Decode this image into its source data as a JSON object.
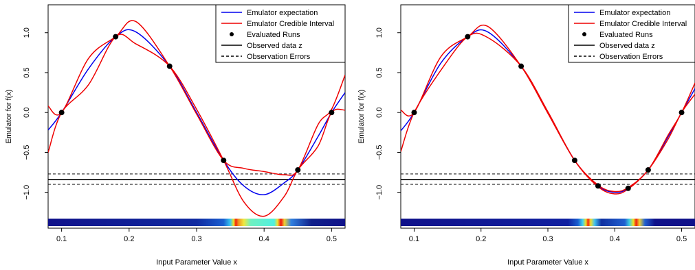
{
  "chart_data": [
    {
      "type": "line",
      "xlabel": "Input Parameter Value x",
      "ylabel": "Emulator for f(x)",
      "xlim": [
        0.08,
        0.52
      ],
      "ylim": [
        -1.45,
        1.35
      ],
      "xticks": [
        0.1,
        0.2,
        0.3,
        0.4,
        0.5
      ],
      "xtick_labels": [
        "0.1",
        "0.2",
        "0.3",
        "0.4",
        "0.5"
      ],
      "yticks": [
        -1.0,
        -0.5,
        0.0,
        0.5,
        1.0
      ],
      "ytick_labels": [
        "−1.0",
        "−0.5",
        "0.0",
        "0.5",
        "1.0"
      ],
      "legend": {
        "placement": "top-right",
        "entries": [
          {
            "label": "Emulator expectation",
            "style": "line",
            "color": "#0000ee"
          },
          {
            "label": "Emulator Credible Interval",
            "style": "line",
            "color": "#ee0000"
          },
          {
            "label": "Evaluated Runs",
            "style": "point",
            "color": "#000000"
          },
          {
            "label": "Observed data z",
            "style": "line",
            "color": "#000000"
          },
          {
            "label": "Observation Errors",
            "style": "dash",
            "color": "#000000"
          }
        ]
      },
      "observed_z": -0.84,
      "observation_error_band": [
        -0.9,
        -0.77
      ],
      "runs": {
        "x": [
          0.1,
          0.18,
          0.26,
          0.34,
          0.45,
          0.5
        ],
        "y": [
          0.0,
          0.95,
          0.58,
          -0.6,
          -0.72,
          0.0
        ]
      },
      "series": [
        {
          "name": "Emulator expectation",
          "color": "#0000ee",
          "x": [
            0.08,
            0.1,
            0.14,
            0.18,
            0.21,
            0.26,
            0.3,
            0.34,
            0.37,
            0.4,
            0.43,
            0.45,
            0.48,
            0.5,
            0.52
          ],
          "y": [
            -0.22,
            0.0,
            0.55,
            0.95,
            1.01,
            0.58,
            0.0,
            -0.6,
            -0.92,
            -1.03,
            -0.88,
            -0.72,
            -0.3,
            0.0,
            0.25
          ]
        },
        {
          "name": "Emulator Credible Interval (upper)",
          "color": "#ee0000",
          "x": [
            0.08,
            0.1,
            0.14,
            0.18,
            0.21,
            0.26,
            0.3,
            0.34,
            0.37,
            0.4,
            0.43,
            0.45,
            0.48,
            0.5,
            0.52
          ],
          "y": [
            0.08,
            0.0,
            0.68,
            0.95,
            1.14,
            0.58,
            -0.02,
            -0.6,
            -0.7,
            -0.74,
            -0.78,
            -0.72,
            -0.15,
            0.04,
            0.47
          ]
        },
        {
          "name": "Emulator Credible Interval (lower)",
          "color": "#ee0000",
          "x": [
            0.08,
            0.1,
            0.14,
            0.18,
            0.21,
            0.26,
            0.3,
            0.34,
            0.37,
            0.4,
            0.43,
            0.45,
            0.48,
            0.5,
            0.52
          ],
          "y": [
            -0.5,
            0.0,
            0.35,
            0.95,
            0.86,
            0.58,
            0.04,
            -0.6,
            -1.12,
            -1.3,
            -1.05,
            -0.72,
            -0.42,
            0.0,
            0.03
          ]
        }
      ],
      "heatmap_strip": {
        "x_range": [
          0.08,
          0.52
        ],
        "stops": [
          {
            "x": 0.08,
            "color": "#10128a"
          },
          {
            "x": 0.3,
            "color": "#102aa0"
          },
          {
            "x": 0.34,
            "color": "#1a5fd0"
          },
          {
            "x": 0.35,
            "color": "#38c8f0"
          },
          {
            "x": 0.355,
            "color": "#f0e020"
          },
          {
            "x": 0.358,
            "color": "#f02010"
          },
          {
            "x": 0.362,
            "color": "#f09020"
          },
          {
            "x": 0.37,
            "color": "#f0e840"
          },
          {
            "x": 0.38,
            "color": "#70f0c0"
          },
          {
            "x": 0.415,
            "color": "#50f0e0"
          },
          {
            "x": 0.42,
            "color": "#f0e030"
          },
          {
            "x": 0.425,
            "color": "#f01010"
          },
          {
            "x": 0.43,
            "color": "#f0d030"
          },
          {
            "x": 0.44,
            "color": "#3080e0"
          },
          {
            "x": 0.47,
            "color": "#10208a"
          },
          {
            "x": 0.52,
            "color": "#10128a"
          }
        ]
      }
    },
    {
      "type": "line",
      "xlabel": "Input Parameter Value x",
      "ylabel": "Emulator for f(x)",
      "xlim": [
        0.08,
        0.52
      ],
      "ylim": [
        -1.45,
        1.35
      ],
      "xticks": [
        0.1,
        0.2,
        0.3,
        0.4,
        0.5
      ],
      "xtick_labels": [
        "0.1",
        "0.2",
        "0.3",
        "0.4",
        "0.5"
      ],
      "yticks": [
        -1.0,
        -0.5,
        0.0,
        0.5,
        1.0
      ],
      "ytick_labels": [
        "−1.0",
        "−0.5",
        "0.0",
        "0.5",
        "1.0"
      ],
      "legend": {
        "placement": "top-right",
        "entries": [
          {
            "label": "Emulator expectation",
            "style": "line",
            "color": "#0000ee"
          },
          {
            "label": "Emulator Credible Interval",
            "style": "line",
            "color": "#ee0000"
          },
          {
            "label": "Evaluated Runs",
            "style": "point",
            "color": "#000000"
          },
          {
            "label": "Observed data z",
            "style": "line",
            "color": "#000000"
          },
          {
            "label": "Observation Errors",
            "style": "dash",
            "color": "#000000"
          }
        ]
      },
      "observed_z": -0.84,
      "observation_error_band": [
        -0.9,
        -0.77
      ],
      "runs": {
        "x": [
          0.1,
          0.18,
          0.26,
          0.34,
          0.375,
          0.42,
          0.45,
          0.5
        ],
        "y": [
          0.0,
          0.95,
          0.58,
          -0.6,
          -0.92,
          -0.95,
          -0.72,
          0.0
        ]
      },
      "series": [
        {
          "name": "Emulator expectation",
          "color": "#0000ee",
          "x": [
            0.08,
            0.1,
            0.14,
            0.18,
            0.21,
            0.26,
            0.3,
            0.34,
            0.375,
            0.4,
            0.42,
            0.45,
            0.48,
            0.5,
            0.52
          ],
          "y": [
            -0.23,
            0.0,
            0.62,
            0.95,
            1.01,
            0.58,
            0.0,
            -0.6,
            -0.92,
            -1.0,
            -0.95,
            -0.72,
            -0.3,
            0.0,
            0.3
          ]
        },
        {
          "name": "Emulator Credible Interval (upper)",
          "color": "#ee0000",
          "x": [
            0.08,
            0.1,
            0.14,
            0.18,
            0.21,
            0.26,
            0.3,
            0.34,
            0.375,
            0.4,
            0.42,
            0.45,
            0.48,
            0.5,
            0.52
          ],
          "y": [
            0.03,
            0.0,
            0.7,
            0.95,
            1.08,
            0.58,
            -0.01,
            -0.6,
            -0.91,
            -0.99,
            -0.94,
            -0.72,
            -0.28,
            0.0,
            0.37
          ]
        },
        {
          "name": "Emulator Credible Interval (lower)",
          "color": "#ee0000",
          "x": [
            0.08,
            0.1,
            0.14,
            0.18,
            0.21,
            0.26,
            0.3,
            0.34,
            0.375,
            0.4,
            0.42,
            0.45,
            0.48,
            0.5,
            0.52
          ],
          "y": [
            -0.49,
            0.0,
            0.53,
            0.95,
            0.94,
            0.58,
            0.01,
            -0.6,
            -0.93,
            -1.02,
            -0.96,
            -0.72,
            -0.33,
            0.0,
            0.23
          ]
        }
      ],
      "heatmap_strip": {
        "x_range": [
          0.08,
          0.52
        ],
        "stops": [
          {
            "x": 0.08,
            "color": "#10128a"
          },
          {
            "x": 0.33,
            "color": "#1020a0"
          },
          {
            "x": 0.345,
            "color": "#1a5fd0"
          },
          {
            "x": 0.352,
            "color": "#40d0f0"
          },
          {
            "x": 0.357,
            "color": "#f0e020"
          },
          {
            "x": 0.36,
            "color": "#f02010"
          },
          {
            "x": 0.364,
            "color": "#f0e030"
          },
          {
            "x": 0.37,
            "color": "#40c0f0"
          },
          {
            "x": 0.38,
            "color": "#1030a0"
          },
          {
            "x": 0.415,
            "color": "#2060d0"
          },
          {
            "x": 0.422,
            "color": "#40d0e0"
          },
          {
            "x": 0.428,
            "color": "#f0e020"
          },
          {
            "x": 0.432,
            "color": "#f02010"
          },
          {
            "x": 0.437,
            "color": "#f0d030"
          },
          {
            "x": 0.445,
            "color": "#2060d0"
          },
          {
            "x": 0.46,
            "color": "#10128a"
          },
          {
            "x": 0.52,
            "color": "#10128a"
          }
        ]
      }
    }
  ]
}
